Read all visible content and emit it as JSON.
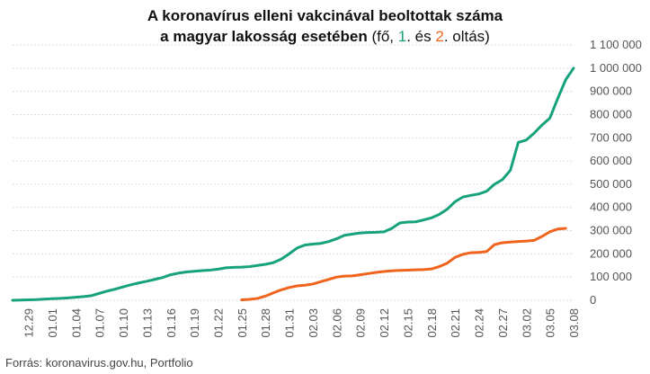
{
  "title": {
    "line1": "A koronavírus elleni vakcinával beoltottak száma",
    "line2_bold": "a magyar lakosság esetében",
    "line2_open": " (fő, ",
    "dose1": "1",
    "sep1": ". és ",
    "dose2": "2",
    "line2_close": ". oltás)"
  },
  "source": "Forrás: koronavirus.gov.hu, Portfolio",
  "colors": {
    "dose1": "#16a27c",
    "dose2": "#f0641e",
    "grid": "#dddddd"
  },
  "chart_data": {
    "type": "line",
    "ylim": [
      0,
      1100000
    ],
    "y_ticks": [
      0,
      100000,
      200000,
      300000,
      400000,
      500000,
      600000,
      700000,
      800000,
      900000,
      1000000,
      1100000
    ],
    "y_tick_labels": [
      "0",
      "100 000",
      "200 000",
      "300 000",
      "400 000",
      "500 000",
      "600 000",
      "700 000",
      "800 000",
      "900 000",
      "1 000 000",
      "1 100 000"
    ],
    "x_tick_labels": [
      "12.29",
      "01.01",
      "01.04",
      "01.07",
      "01.10",
      "01.13",
      "01.16",
      "01.19",
      "01.22",
      "01.25",
      "01.28",
      "01.31",
      "02.03",
      "02.06",
      "02.09",
      "02.12",
      "02.15",
      "02.18",
      "02.21",
      "02.24",
      "02.27",
      "03.02",
      "03.05",
      "03.08"
    ],
    "x": [
      "12.27",
      "12.28",
      "12.29",
      "12.30",
      "12.31",
      "01.01",
      "01.02",
      "01.03",
      "01.04",
      "01.05",
      "01.06",
      "01.07",
      "01.08",
      "01.09",
      "01.10",
      "01.11",
      "01.12",
      "01.13",
      "01.14",
      "01.15",
      "01.16",
      "01.17",
      "01.18",
      "01.19",
      "01.20",
      "01.21",
      "01.22",
      "01.23",
      "01.24",
      "01.25",
      "01.26",
      "01.27",
      "01.28",
      "01.29",
      "01.30",
      "01.31",
      "02.01",
      "02.02",
      "02.03",
      "02.04",
      "02.05",
      "02.06",
      "02.07",
      "02.08",
      "02.09",
      "02.10",
      "02.11",
      "02.12",
      "02.13",
      "02.14",
      "02.15",
      "02.16",
      "02.17",
      "02.18",
      "02.19",
      "02.20",
      "02.21",
      "02.22",
      "02.23",
      "02.24",
      "02.25",
      "02.26",
      "02.27",
      "02.28",
      "03.01",
      "03.02",
      "03.03",
      "03.04",
      "03.05",
      "03.06",
      "03.07",
      "03.08"
    ],
    "series": [
      {
        "values": [
          0,
          1000,
          2000,
          3000,
          5000,
          7000,
          8000,
          10000,
          13000,
          16000,
          20000,
          30000,
          40000,
          48000,
          58000,
          67000,
          75000,
          82000,
          90000,
          98000,
          110000,
          117000,
          122000,
          125000,
          128000,
          130000,
          134000,
          140000,
          142000,
          143000,
          145000,
          150000,
          155000,
          162000,
          177000,
          200000,
          225000,
          238000,
          242000,
          245000,
          253000,
          265000,
          280000,
          285000,
          290000,
          292000,
          293000,
          295000,
          310000,
          333000,
          337000,
          338000,
          346000,
          355000,
          370000,
          392000,
          425000,
          445000,
          452000,
          458000,
          470000,
          500000,
          520000,
          560000,
          680000,
          690000,
          720000,
          755000,
          785000,
          870000,
          950000,
          1000000
        ]
      },
      {
        "values": [
          null,
          null,
          null,
          null,
          null,
          null,
          null,
          null,
          null,
          null,
          null,
          null,
          null,
          null,
          null,
          null,
          null,
          null,
          null,
          null,
          null,
          null,
          null,
          null,
          null,
          null,
          null,
          null,
          null,
          2000,
          4000,
          8000,
          18000,
          32000,
          45000,
          55000,
          62000,
          65000,
          70000,
          80000,
          90000,
          100000,
          104000,
          105000,
          110000,
          115000,
          120000,
          124000,
          127000,
          129000,
          130000,
          131000,
          132000,
          135000,
          145000,
          160000,
          185000,
          198000,
          205000,
          206000,
          210000,
          240000,
          248000,
          251000,
          253000,
          255000,
          258000,
          275000,
          295000,
          307000,
          310000,
          null
        ]
      }
    ]
  }
}
